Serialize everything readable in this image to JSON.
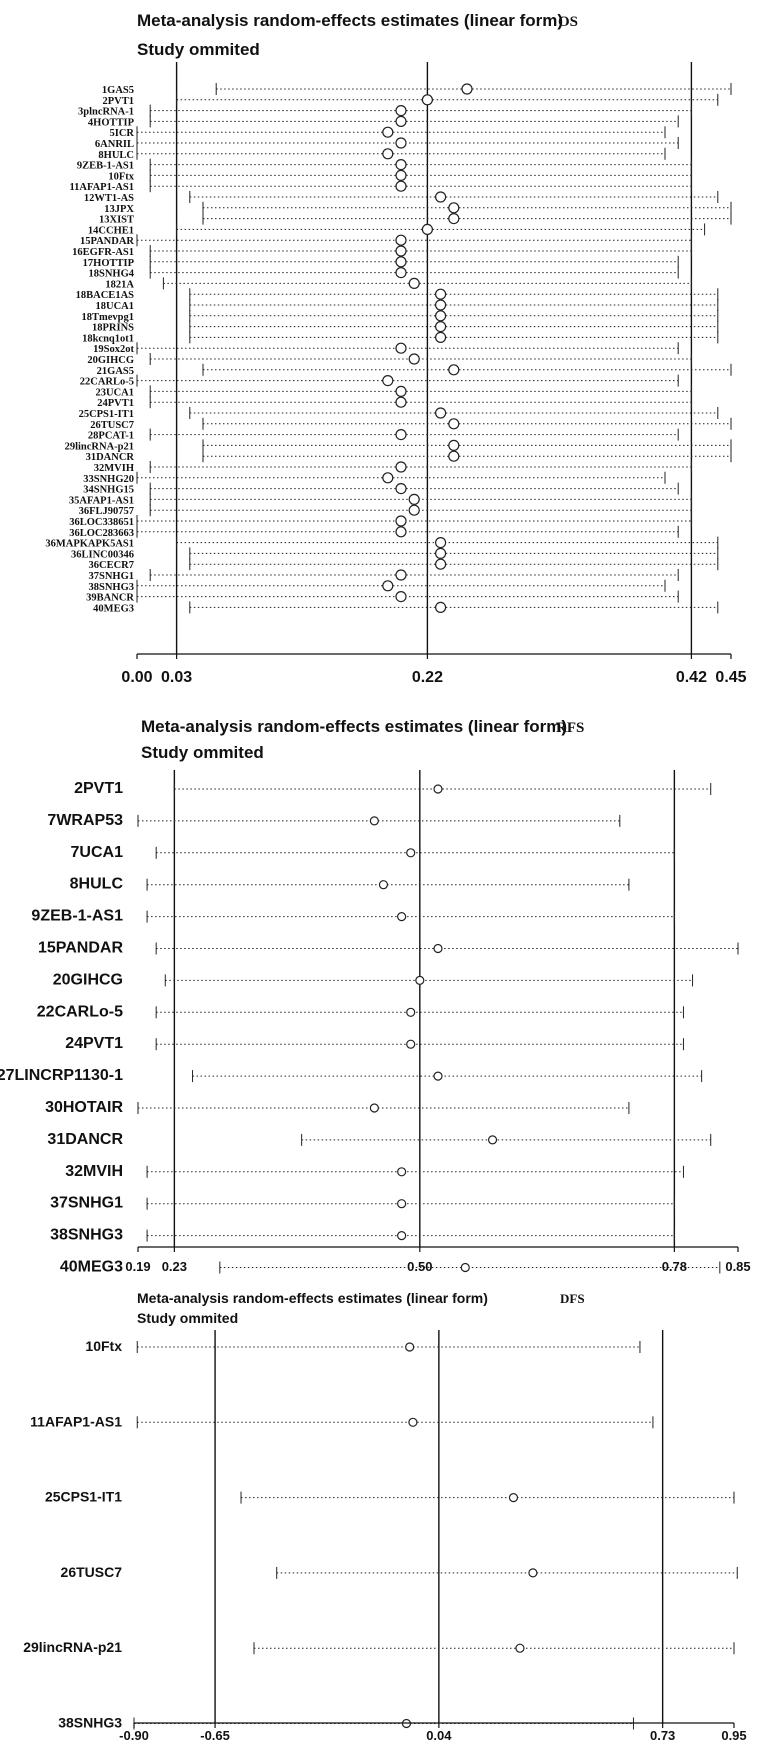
{
  "chart_data": [
    {
      "type": "forest",
      "title": "Meta-analysis random-effects estimates (linear form)",
      "outcome": "OS",
      "subtitle": "Study ommited",
      "xticks": [
        0.0,
        0.03,
        0.22,
        0.42,
        0.45
      ],
      "tick_labels": [
        "0.00",
        "0.03",
        "0.22",
        "0.42",
        "0.45"
      ],
      "xlim": [
        0.0,
        0.45
      ],
      "reference_lines": [
        0.03,
        0.22,
        0.42
      ],
      "studies": [
        {
          "label": "1GAS5",
          "est": 0.25,
          "lo": 0.06,
          "hi": 0.45
        },
        {
          "label": "2PVT1",
          "est": 0.22,
          "lo": 0.03,
          "hi": 0.44
        },
        {
          "label": "3plncRNA-1",
          "est": 0.2,
          "lo": 0.01,
          "hi": 0.42
        },
        {
          "label": "4HOTTIP",
          "est": 0.2,
          "lo": 0.01,
          "hi": 0.41
        },
        {
          "label": "5ICR",
          "est": 0.19,
          "lo": 0.0,
          "hi": 0.4
        },
        {
          "label": "6ANRIL",
          "est": 0.2,
          "lo": 0.0,
          "hi": 0.41
        },
        {
          "label": "8HULC",
          "est": 0.19,
          "lo": 0.0,
          "hi": 0.4
        },
        {
          "label": "9ZEB-1-AS1",
          "est": 0.2,
          "lo": 0.01,
          "hi": 0.42
        },
        {
          "label": "10Ftx",
          "est": 0.2,
          "lo": 0.01,
          "hi": 0.42
        },
        {
          "label": "11AFAP1-AS1",
          "est": 0.2,
          "lo": 0.01,
          "hi": 0.42
        },
        {
          "label": "12WT1-AS",
          "est": 0.23,
          "lo": 0.04,
          "hi": 0.44
        },
        {
          "label": "13JPX",
          "est": 0.24,
          "lo": 0.05,
          "hi": 0.45
        },
        {
          "label": "13XIST",
          "est": 0.24,
          "lo": 0.05,
          "hi": 0.45
        },
        {
          "label": "14CCHE1",
          "est": 0.22,
          "lo": 0.03,
          "hi": 0.43
        },
        {
          "label": "15PANDAR",
          "est": 0.2,
          "lo": 0.0,
          "hi": 0.42
        },
        {
          "label": "16EGFR-AS1",
          "est": 0.2,
          "lo": 0.01,
          "hi": 0.42
        },
        {
          "label": "17HOTTIP",
          "est": 0.2,
          "lo": 0.01,
          "hi": 0.41
        },
        {
          "label": "18SNHG4",
          "est": 0.2,
          "lo": 0.01,
          "hi": 0.41
        },
        {
          "label": "1821A",
          "est": 0.21,
          "lo": 0.02,
          "hi": 0.42
        },
        {
          "label": "18BACE1AS",
          "est": 0.23,
          "lo": 0.04,
          "hi": 0.44
        },
        {
          "label": "18UCA1",
          "est": 0.23,
          "lo": 0.04,
          "hi": 0.44
        },
        {
          "label": "18Tmevpg1",
          "est": 0.23,
          "lo": 0.04,
          "hi": 0.44
        },
        {
          "label": "18PRINS",
          "est": 0.23,
          "lo": 0.04,
          "hi": 0.44
        },
        {
          "label": "18kcnq1ot1",
          "est": 0.23,
          "lo": 0.04,
          "hi": 0.44
        },
        {
          "label": "19Sox2ot",
          "est": 0.2,
          "lo": 0.0,
          "hi": 0.41
        },
        {
          "label": "20GIHCG",
          "est": 0.21,
          "lo": 0.01,
          "hi": 0.42
        },
        {
          "label": "21GAS5",
          "est": 0.24,
          "lo": 0.05,
          "hi": 0.45
        },
        {
          "label": "22CARLo-5",
          "est": 0.19,
          "lo": 0.0,
          "hi": 0.41
        },
        {
          "label": "23UCA1",
          "est": 0.2,
          "lo": 0.01,
          "hi": 0.42
        },
        {
          "label": "24PVT1",
          "est": 0.2,
          "lo": 0.01,
          "hi": 0.42
        },
        {
          "label": "25CPS1-IT1",
          "est": 0.23,
          "lo": 0.04,
          "hi": 0.44
        },
        {
          "label": "26TUSC7",
          "est": 0.24,
          "lo": 0.05,
          "hi": 0.45
        },
        {
          "label": "28PCAT-1",
          "est": 0.2,
          "lo": 0.01,
          "hi": 0.41
        },
        {
          "label": "29lincRNA-p21",
          "est": 0.24,
          "lo": 0.05,
          "hi": 0.45
        },
        {
          "label": "31DANCR",
          "est": 0.24,
          "lo": 0.05,
          "hi": 0.45
        },
        {
          "label": "32MVIH",
          "est": 0.2,
          "lo": 0.01,
          "hi": 0.42
        },
        {
          "label": "33SNHG20",
          "est": 0.19,
          "lo": 0.0,
          "hi": 0.4
        },
        {
          "label": "34SNHG15",
          "est": 0.2,
          "lo": 0.01,
          "hi": 0.41
        },
        {
          "label": "35AFAP1-AS1",
          "est": 0.21,
          "lo": 0.01,
          "hi": 0.42
        },
        {
          "label": "36FLJ90757",
          "est": 0.21,
          "lo": 0.01,
          "hi": 0.42
        },
        {
          "label": "36LOC338651",
          "est": 0.2,
          "lo": 0.0,
          "hi": 0.42
        },
        {
          "label": "36LOC283663",
          "est": 0.2,
          "lo": 0.0,
          "hi": 0.41
        },
        {
          "label": "36MAPKAPK5AS1",
          "est": 0.23,
          "lo": 0.03,
          "hi": 0.44
        },
        {
          "label": "36LINC00346",
          "est": 0.23,
          "lo": 0.04,
          "hi": 0.44
        },
        {
          "label": "36CECR7",
          "est": 0.23,
          "lo": 0.04,
          "hi": 0.44
        },
        {
          "label": "37SNHG1",
          "est": 0.2,
          "lo": 0.01,
          "hi": 0.41
        },
        {
          "label": "38SNHG3",
          "est": 0.19,
          "lo": 0.0,
          "hi": 0.4
        },
        {
          "label": "39BANCR",
          "est": 0.2,
          "lo": 0.0,
          "hi": 0.41
        },
        {
          "label": "40MEG3",
          "est": 0.23,
          "lo": 0.04,
          "hi": 0.44
        }
      ]
    },
    {
      "type": "forest",
      "title": "Meta-analysis random-effects estimates (linear form)",
      "outcome": "RFS",
      "subtitle": "Study ommited",
      "xticks": [
        0.19,
        0.23,
        0.5,
        0.78,
        0.85
      ],
      "tick_labels": [
        "0.19",
        "0.23",
        "0.50",
        "0.78",
        "0.85"
      ],
      "xlim": [
        0.19,
        0.85
      ],
      "reference_lines": [
        0.23,
        0.5,
        0.78
      ],
      "studies": [
        {
          "label": "2PVT1",
          "est": 0.52,
          "lo": 0.23,
          "hi": 0.82
        },
        {
          "label": "7WRAP53",
          "est": 0.45,
          "lo": 0.19,
          "hi": 0.72
        },
        {
          "label": "7UCA1",
          "est": 0.49,
          "lo": 0.21,
          "hi": 0.78
        },
        {
          "label": "8HULC",
          "est": 0.46,
          "lo": 0.2,
          "hi": 0.73
        },
        {
          "label": "9ZEB-1-AS1",
          "est": 0.48,
          "lo": 0.2,
          "hi": 0.78
        },
        {
          "label": "15PANDAR",
          "est": 0.52,
          "lo": 0.21,
          "hi": 0.85
        },
        {
          "label": "20GIHCG",
          "est": 0.5,
          "lo": 0.22,
          "hi": 0.8
        },
        {
          "label": "22CARLo-5",
          "est": 0.49,
          "lo": 0.21,
          "hi": 0.79
        },
        {
          "label": "24PVT1",
          "est": 0.49,
          "lo": 0.21,
          "hi": 0.79
        },
        {
          "label": "27LINCRP1130-1",
          "est": 0.52,
          "lo": 0.25,
          "hi": 0.81
        },
        {
          "label": "30HOTAIR",
          "est": 0.45,
          "lo": 0.19,
          "hi": 0.73
        },
        {
          "label": "31DANCR",
          "est": 0.58,
          "lo": 0.37,
          "hi": 0.82
        },
        {
          "label": "32MVIH",
          "est": 0.48,
          "lo": 0.2,
          "hi": 0.79
        },
        {
          "label": "37SNHG1",
          "est": 0.48,
          "lo": 0.2,
          "hi": 0.78
        },
        {
          "label": "38SNHG3",
          "est": 0.48,
          "lo": 0.2,
          "hi": 0.78
        },
        {
          "label": "40MEG3",
          "est": 0.55,
          "lo": 0.28,
          "hi": 0.83
        }
      ]
    },
    {
      "type": "forest",
      "title": "Meta-analysis random-effects estimates (linear form)",
      "outcome": "DFS",
      "subtitle": "Study ommited",
      "xticks": [
        -0.9,
        -0.65,
        0.04,
        0.73,
        0.95
      ],
      "tick_labels": [
        "-0.90",
        "-0.65",
        "0.04",
        "0.73",
        "0.95"
      ],
      "xlim": [
        -0.9,
        0.95
      ],
      "reference_lines": [
        -0.65,
        0.04,
        0.73
      ],
      "studies": [
        {
          "label": "10Ftx",
          "est": -0.05,
          "lo": -0.89,
          "hi": 0.66
        },
        {
          "label": "11AFAP1-AS1",
          "est": -0.04,
          "lo": -0.89,
          "hi": 0.7
        },
        {
          "label": "25CPS1-IT1",
          "est": 0.27,
          "lo": -0.57,
          "hi": 0.95
        },
        {
          "label": "26TUSC7",
          "est": 0.33,
          "lo": -0.46,
          "hi": 0.96
        },
        {
          "label": "29lincRNA-p21",
          "est": 0.29,
          "lo": -0.53,
          "hi": 0.95
        },
        {
          "label": "38SNHG3",
          "est": -0.06,
          "lo": -0.9,
          "hi": 0.64
        }
      ]
    }
  ]
}
